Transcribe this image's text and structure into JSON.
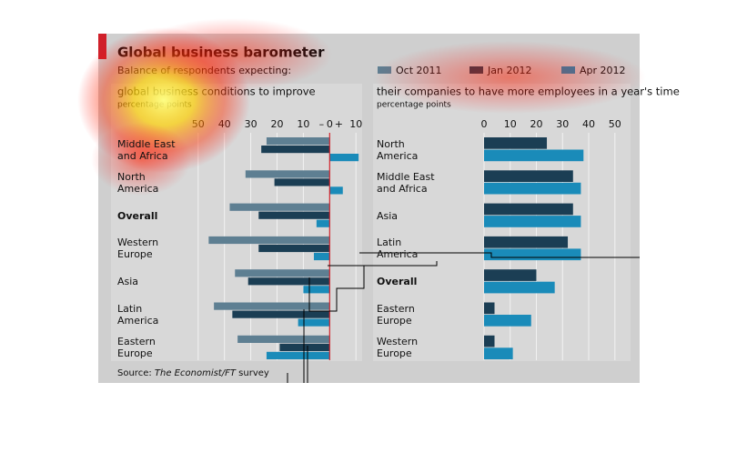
{
  "header": {
    "title": "Global business barometer",
    "subtitle": "Balance of respondents expecting:"
  },
  "source": {
    "label": "Source:",
    "publication": "The Economist/FT",
    "rest": "survey"
  },
  "chart_data": [
    {
      "type": "hbar",
      "title": "global business conditions to improve",
      "subtitle": "percentage points",
      "categories": [
        "Middle East and Africa",
        "North America",
        "Overall",
        "Western Europe",
        "Asia",
        "Latin America",
        "Eastern Europe"
      ],
      "bold_index": 2,
      "series": [
        {
          "name": "Oct 2011",
          "color": "#5e7f92",
          "values": [
            -24,
            -32,
            -38,
            -46,
            -36,
            -44,
            -35
          ]
        },
        {
          "name": "Jan 2012",
          "color": "#1b3e54",
          "values": [
            -26,
            -21,
            -27,
            -27,
            -31,
            -37,
            -19
          ]
        },
        {
          "name": "Apr 2012",
          "color": "#1a8bb9",
          "values": [
            11,
            5,
            -5,
            -6,
            -10,
            -12,
            -24
          ]
        }
      ],
      "xlim": [
        -52,
        12
      ],
      "xticks": [
        {
          "value": -50,
          "label": "50"
        },
        {
          "value": -40,
          "label": "40"
        },
        {
          "value": -30,
          "label": "30"
        },
        {
          "value": -20,
          "label": "20"
        },
        {
          "value": -10,
          "label": "10"
        },
        0,
        10
      ],
      "neg_sign": "–",
      "pos_sign": "+",
      "zero_color": "#d0202a"
    },
    {
      "type": "hbar",
      "title": "their companies to have more employees in a year's time",
      "subtitle": "percentage points",
      "categories": [
        "North America",
        "Middle East and Africa",
        "Asia",
        "Latin America",
        "Overall",
        "Eastern Europe",
        "Western Europe"
      ],
      "bold_index": 4,
      "series": [
        {
          "color": "#1b3e54",
          "values": [
            24,
            34,
            34,
            32,
            20,
            4,
            4
          ]
        },
        {
          "color": "#1a8bb9",
          "values": [
            38,
            37,
            37,
            37,
            27,
            18,
            11
          ]
        }
      ],
      "xlim": [
        0,
        52.5
      ],
      "xticks": [
        0,
        10,
        20,
        30,
        40,
        50
      ]
    }
  ]
}
